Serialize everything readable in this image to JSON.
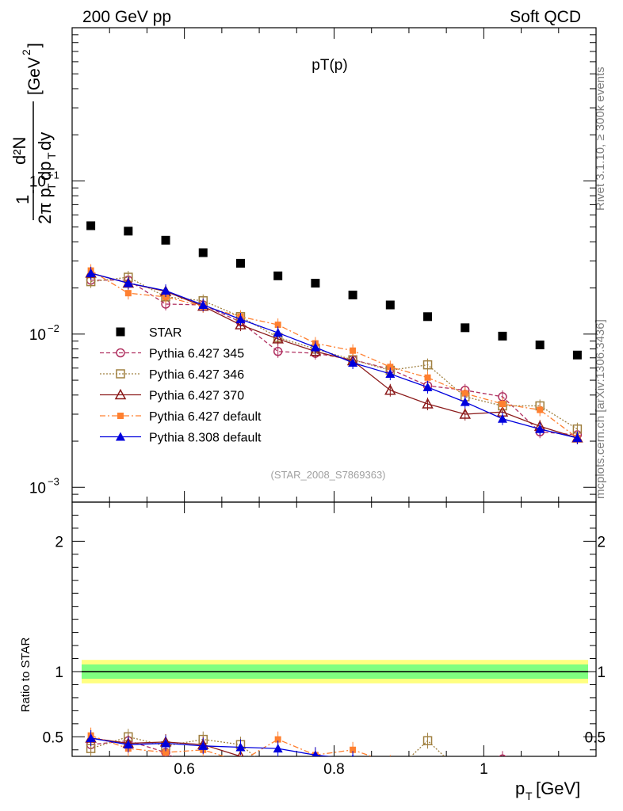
{
  "header": {
    "left": "200 GeV pp",
    "right": "Soft QCD"
  },
  "plot_title": "pT(p)",
  "ylabel_main": "1/(2π pT) d²N/(dpT dy) [GeV⁻²]",
  "side_text_top": "Rivet 3.1.10, ≥ 300k events",
  "side_text_bottom": "mcplots.cern.ch [arXiv:1306.3436]",
  "analysis_tag": "(STAR_2008_S7869363)",
  "ratio_ylabel": "Ratio to STAR",
  "xlabel": "p_T [GeV]",
  "colors": {
    "star": "#000000",
    "p345": "#b03060",
    "p346": "#a08040",
    "p370": "#8b1a1a",
    "pdef": "#ff8030",
    "p8": "#0000dd",
    "band_inner": "#80ff80",
    "band_outer": "#ffff80"
  },
  "chart_data": {
    "type": "scatter",
    "x": [
      0.475,
      0.525,
      0.575,
      0.625,
      0.675,
      0.725,
      0.775,
      0.825,
      0.875,
      0.925,
      0.975,
      1.025,
      1.075,
      1.125
    ],
    "xlim": [
      0.45,
      1.15
    ],
    "ylim_main": [
      0.0008,
      1.0
    ],
    "yscale_main": "log",
    "ylim_ratio": [
      0.35,
      2.3
    ],
    "x_ticks": [
      "0.6",
      "0.8",
      "1"
    ],
    "y_ticks_main": [
      "10^{-3}",
      "10^{-2}",
      "10^{-1}"
    ],
    "y_ticks_ratio": [
      "0.5",
      "1",
      "2"
    ],
    "legend_position": "middle-left",
    "series": [
      {
        "key": "star",
        "name": "STAR",
        "marker": "square-filled",
        "line": "none",
        "values": [
          0.051,
          0.047,
          0.041,
          0.034,
          0.029,
          0.024,
          0.0215,
          0.018,
          0.0155,
          0.013,
          0.011,
          0.0097,
          0.0085,
          0.0073
        ]
      },
      {
        "key": "p345",
        "name": "Pythia 6.427 345",
        "marker": "circle-open",
        "line": "dashed",
        "values": [
          0.0225,
          0.0225,
          0.0157,
          0.0155,
          0.012,
          0.0077,
          0.0075,
          0.0068,
          0.0059,
          0.0046,
          0.0043,
          0.0039,
          0.0023,
          0.0022
        ]
      },
      {
        "key": "p346",
        "name": "Pythia 6.427 346",
        "marker": "square-open",
        "line": "dotted",
        "values": [
          0.022,
          0.0235,
          0.0175,
          0.0165,
          0.013,
          0.0095,
          0.008,
          0.0068,
          0.0058,
          0.0063,
          0.0039,
          0.0034,
          0.0034,
          0.0024
        ]
      },
      {
        "key": "p370",
        "name": "Pythia 6.427 370",
        "marker": "triangle-open",
        "line": "solid",
        "values": [
          0.025,
          0.0215,
          0.019,
          0.0152,
          0.0115,
          0.0093,
          0.0077,
          0.0067,
          0.0043,
          0.0035,
          0.003,
          0.0031,
          0.0025,
          0.0021
        ]
      },
      {
        "key": "pdef",
        "name": "Pythia 6.427 default",
        "marker": "square-filled-small",
        "line": "dashdot",
        "values": [
          0.026,
          0.0185,
          0.0175,
          0.0152,
          0.013,
          0.0115,
          0.0087,
          0.0078,
          0.0061,
          0.0052,
          0.0041,
          0.0035,
          0.0032,
          0.0021
        ]
      },
      {
        "key": "p8",
        "name": "Pythia 8.308 default",
        "marker": "triangle-filled",
        "line": "solid",
        "values": [
          0.025,
          0.0215,
          0.0192,
          0.0155,
          0.0125,
          0.0102,
          0.0082,
          0.0065,
          0.0055,
          0.0045,
          0.0036,
          0.0028,
          0.0024,
          0.0021
        ]
      }
    ],
    "ratio": {
      "star_band": {
        "inner": 0.055,
        "outer": 0.09
      },
      "series": [
        {
          "key": "p345",
          "values": [
            0.44,
            0.47,
            0.38,
            null,
            null,
            null,
            null,
            null,
            null,
            null,
            null,
            0.33,
            null,
            null
          ]
        },
        {
          "key": "p346",
          "values": [
            0.41,
            0.5,
            0.43,
            0.48,
            0.44,
            null,
            null,
            null,
            null,
            0.47,
            null,
            null,
            null,
            null
          ]
        },
        {
          "key": "p370",
          "values": [
            0.49,
            0.45,
            0.46,
            0.44,
            0.35,
            null,
            null,
            null,
            null,
            null,
            null,
            null,
            null,
            null
          ]
        },
        {
          "key": "pdef",
          "values": [
            0.51,
            0.41,
            0.38,
            0.4,
            0.31,
            0.48,
            0.36,
            0.4,
            0.3,
            null,
            null,
            null,
            null,
            null
          ]
        },
        {
          "key": "p8",
          "values": [
            0.49,
            0.44,
            0.45,
            0.43,
            0.42,
            0.41,
            0.36,
            0.33,
            null,
            null,
            null,
            null,
            null,
            null
          ]
        }
      ]
    }
  }
}
